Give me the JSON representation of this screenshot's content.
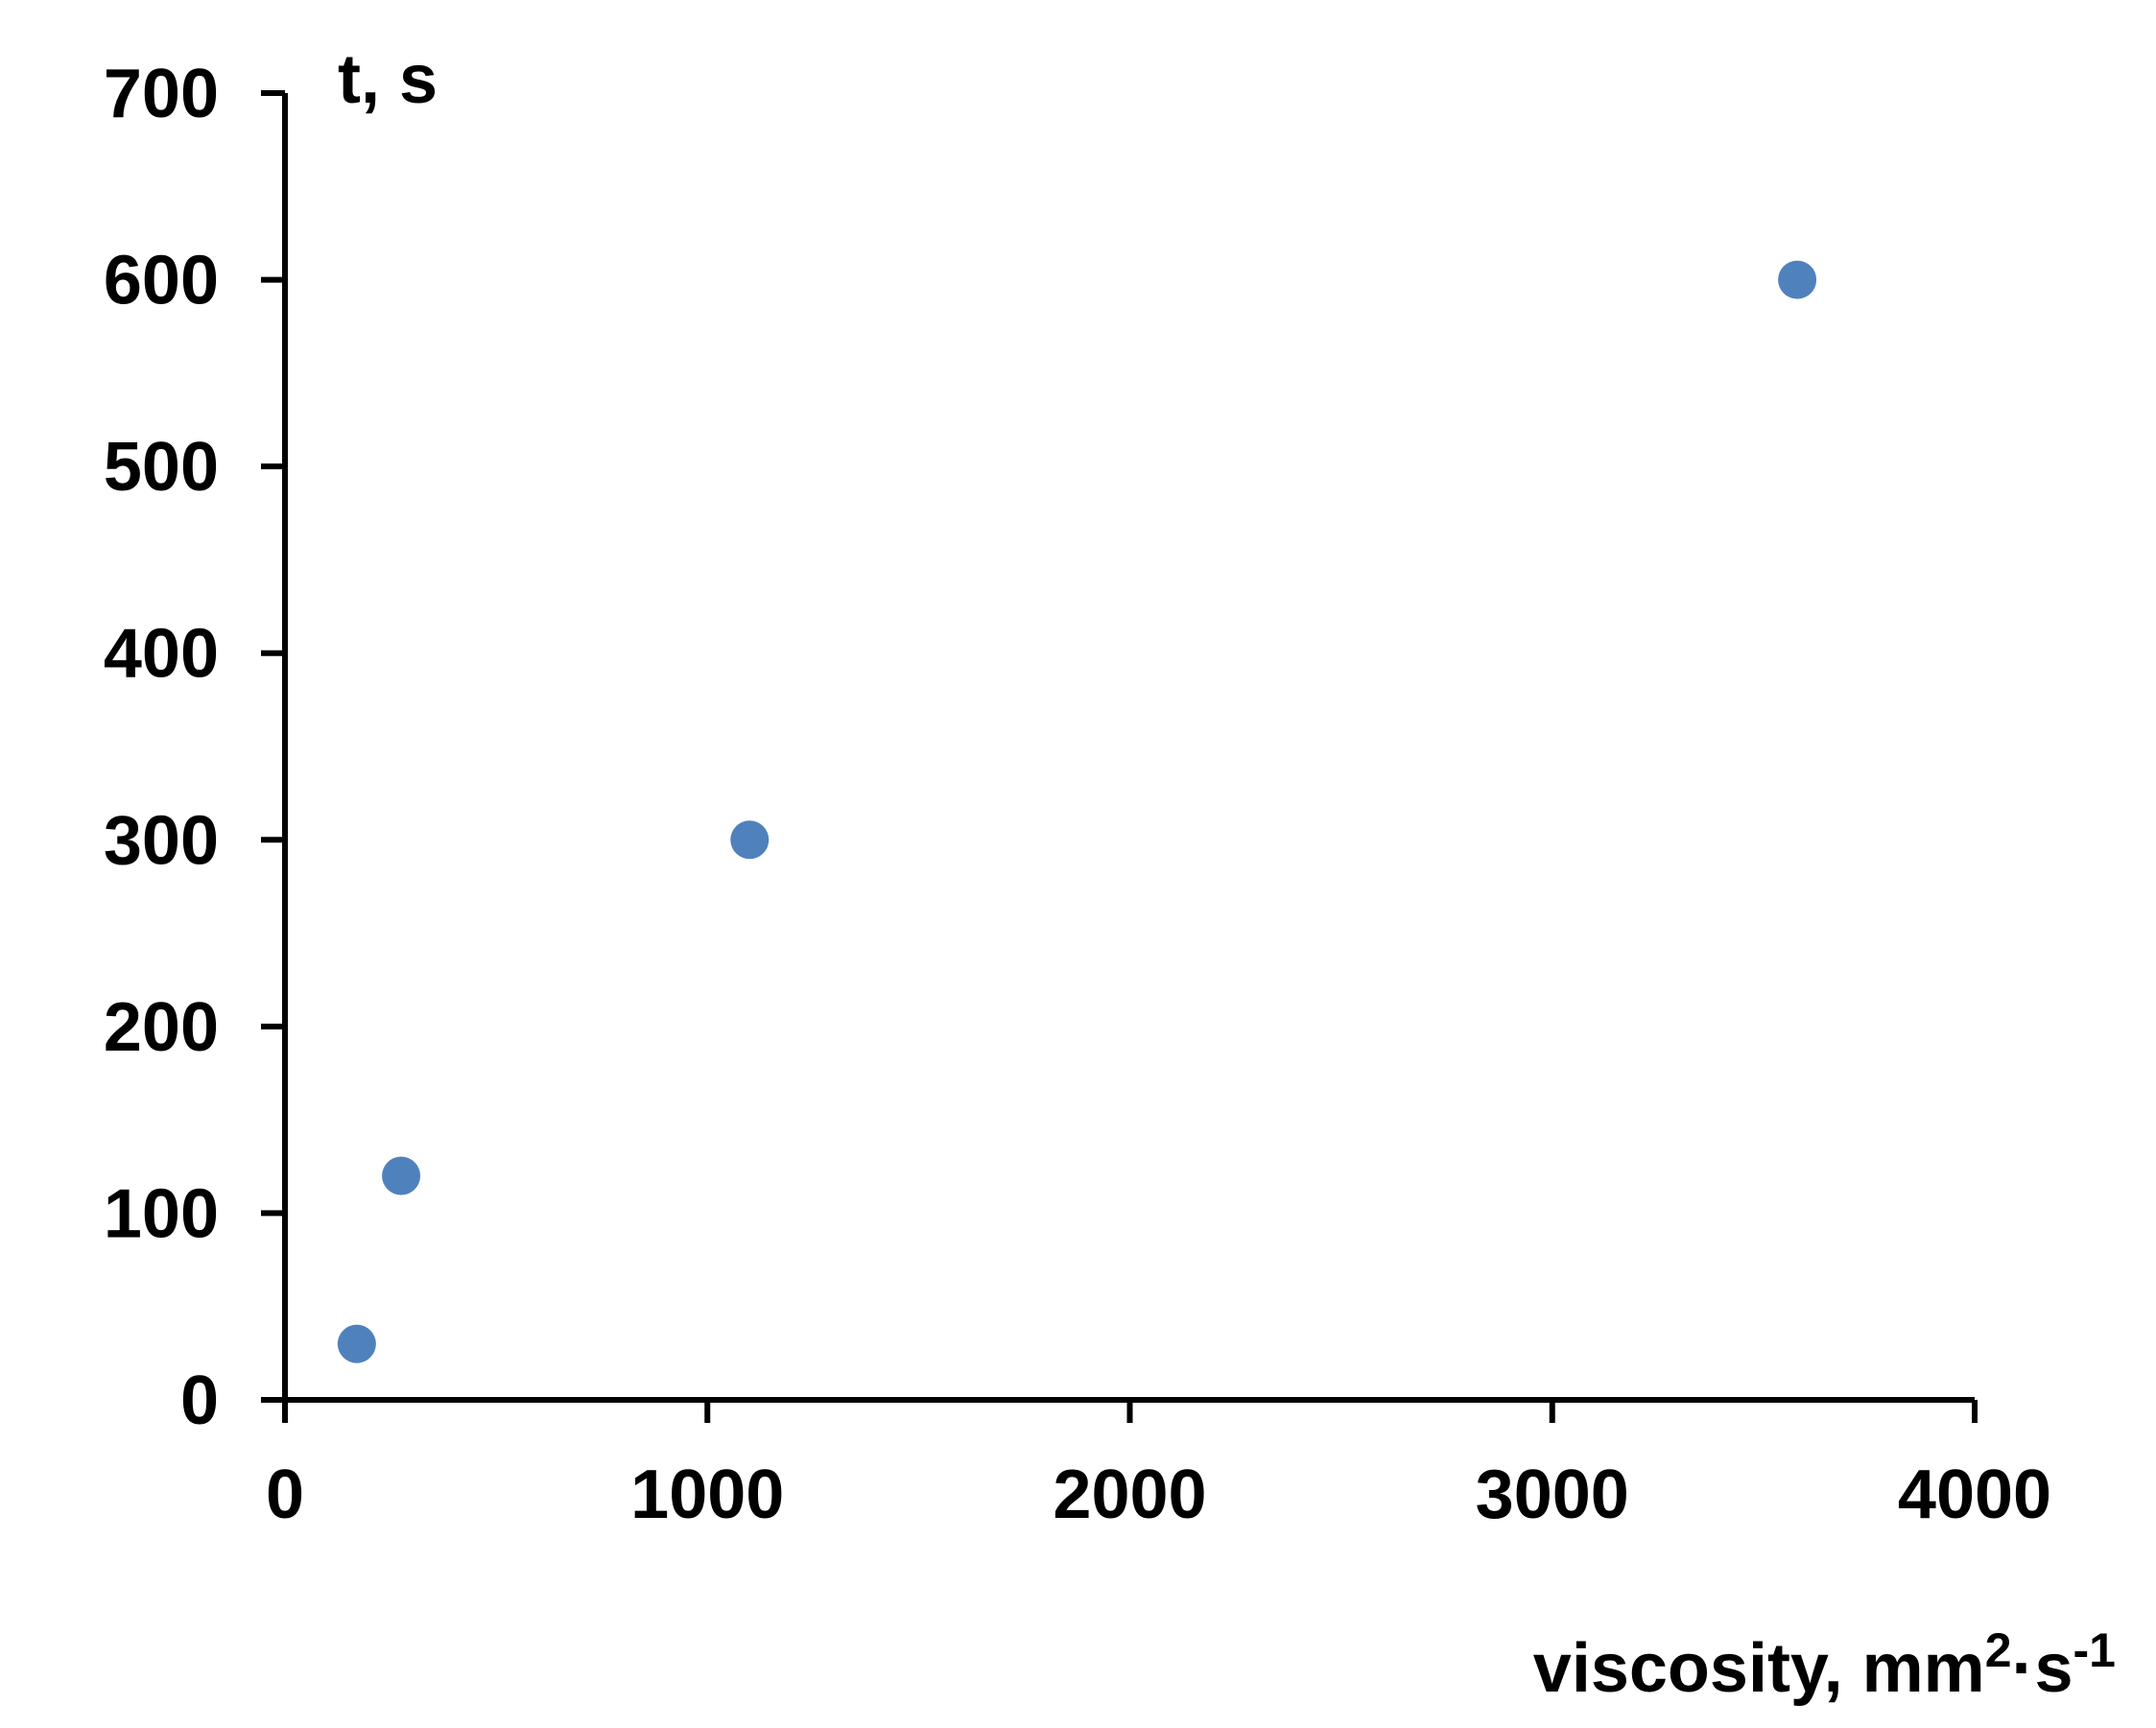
{
  "chart_data": {
    "type": "scatter",
    "xlabel": "viscosity, mm",
    "xlabel_sup1": "2",
    "xlabel_mid": "·s",
    "xlabel_sup2": "-1",
    "ylabel": "t, s",
    "xlim": [
      0,
      4000
    ],
    "ylim": [
      0,
      700
    ],
    "x_ticks": [
      0,
      1000,
      2000,
      3000,
      4000
    ],
    "y_ticks": [
      0,
      100,
      200,
      300,
      400,
      500,
      600,
      700
    ],
    "grid": false,
    "series": [
      {
        "color": "#4f81bd",
        "points": [
          {
            "x": 170,
            "y": 30
          },
          {
            "x": 275,
            "y": 120
          },
          {
            "x": 1100,
            "y": 300
          },
          {
            "x": 3580,
            "y": 600
          }
        ]
      }
    ]
  }
}
